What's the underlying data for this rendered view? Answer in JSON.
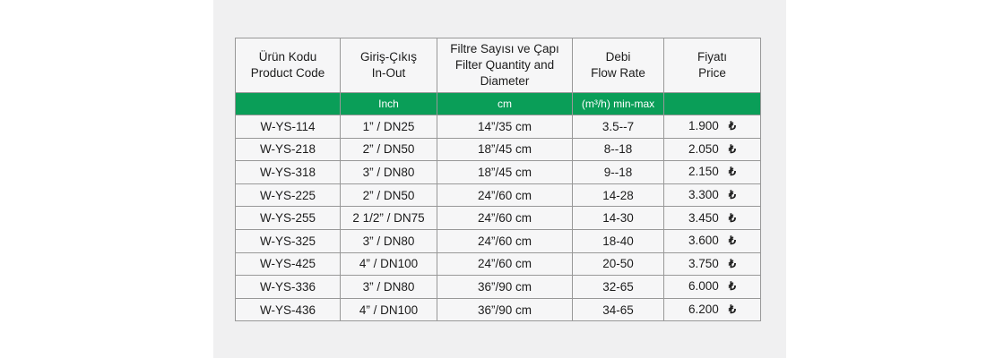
{
  "colors": {
    "green": "#0a9e58",
    "panel_background": "#f0f0f1",
    "page_background": "#ffffff",
    "border": "#989898",
    "text": "#1c1c1c",
    "unit_text": "#ffffff"
  },
  "table": {
    "columns": [
      {
        "title_tr": "Ürün Kodu",
        "title_en": "Product Code",
        "unit": ""
      },
      {
        "title_tr": "Giriş-Çıkış",
        "title_en": "In-Out",
        "unit": "Inch"
      },
      {
        "title_tr": "Filtre Sayısı ve Çapı",
        "title_en": "Filter Quantity and Diameter",
        "unit": "cm"
      },
      {
        "title_tr": "Debi",
        "title_en": "Flow Rate",
        "unit": "(m³/h) min-max"
      },
      {
        "title_tr": "Fiyatı",
        "title_en": "Price",
        "unit": ""
      }
    ],
    "currency_symbol": "₺",
    "rows": [
      {
        "code": "W-YS-114",
        "in_out": "1” / DN25",
        "filter": "14”/35 cm",
        "flow": "3.5--7",
        "price": "1.900"
      },
      {
        "code": "W-YS-218",
        "in_out": "2” / DN50",
        "filter": "18”/45 cm",
        "flow": "8--18",
        "price": "2.050"
      },
      {
        "code": "W-YS-318",
        "in_out": "3” / DN80",
        "filter": "18”/45 cm",
        "flow": "9--18",
        "price": "2.150"
      },
      {
        "code": "W-YS-225",
        "in_out": "2” / DN50",
        "filter": "24”/60 cm",
        "flow": "14-28",
        "price": "3.300"
      },
      {
        "code": "W-YS-255",
        "in_out": "2 1/2” / DN75",
        "filter": "24”/60 cm",
        "flow": "14-30",
        "price": "3.450"
      },
      {
        "code": "W-YS-325",
        "in_out": "3” / DN80",
        "filter": "24”/60 cm",
        "flow": "18-40",
        "price": "3.600"
      },
      {
        "code": "W-YS-425",
        "in_out": "4” / DN100",
        "filter": "24”/60 cm",
        "flow": "20-50",
        "price": "3.750"
      },
      {
        "code": "W-YS-336",
        "in_out": "3” / DN80",
        "filter": "36”/90 cm",
        "flow": "32-65",
        "price": "6.000"
      },
      {
        "code": "W-YS-436",
        "in_out": "4” / DN100",
        "filter": "36”/90 cm",
        "flow": "34-65",
        "price": "6.200"
      }
    ]
  }
}
